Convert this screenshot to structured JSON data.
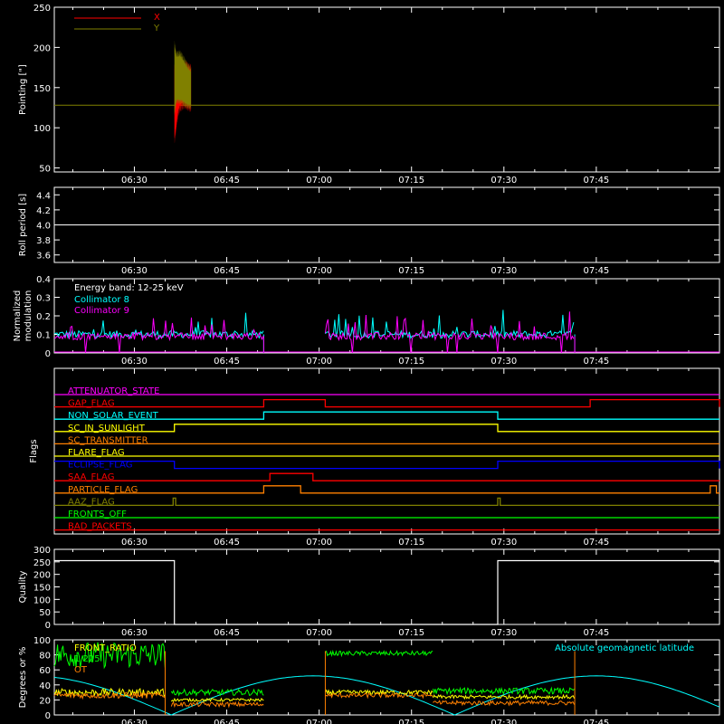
{
  "x_axis": {
    "tick_labels": [
      "06:30",
      "06:45",
      "07:00",
      "07:15",
      "07:30",
      "07:45"
    ],
    "tick_minutes": [
      30,
      45,
      60,
      75,
      90,
      105
    ],
    "range_minutes": [
      17,
      125
    ]
  },
  "chart_data": [
    {
      "type": "area",
      "ylabel": "Pointing [\"]",
      "ylim": [
        45,
        250
      ],
      "yticks": [
        50,
        100,
        150,
        200,
        250
      ],
      "legend_placement": "top-left",
      "series": [
        {
          "name": "X",
          "color": "#ff0000",
          "start": 36.5,
          "end": 39.2,
          "upper": [
            175,
            182,
            175,
            180,
            178,
            178,
            180,
            178,
            176,
            176
          ],
          "lower": [
            83,
            100,
            118,
            124,
            126,
            128,
            128,
            126,
            125,
            124
          ]
        },
        {
          "name": "Y",
          "color": "#808000",
          "start": 36.5,
          "end": 39.2,
          "upper": [
            205,
            192,
            192,
            193,
            190,
            186,
            182,
            178,
            175,
            173
          ],
          "lower": [
            117,
            132,
            133,
            132,
            132,
            130,
            128,
            127,
            126,
            126
          ]
        }
      ],
      "baseline": 128,
      "baseline_color": "#808000"
    },
    {
      "type": "line",
      "ylabel": "Roll period [s]",
      "ylim": [
        3.5,
        4.5
      ],
      "yticks": [
        3.6,
        3.8,
        4.0,
        4.2,
        4.4
      ],
      "ytick_labels": [
        "3.6",
        "3.8",
        "4.0",
        "4.2",
        "4.4"
      ],
      "value": 4.0,
      "color": "#ffffff"
    },
    {
      "type": "line",
      "ylabel": [
        "Normalized",
        "modulation"
      ],
      "ylim": [
        0,
        0.4
      ],
      "yticks": [
        0,
        0.1,
        0.2,
        0.3,
        0.4
      ],
      "ytick_labels": [
        "0",
        "0.1",
        "0.2",
        "0.3",
        "0.4"
      ],
      "annotation": "Energy band: 12-25 keV",
      "series": [
        {
          "name": "Collimator 8",
          "color": "#00ffff",
          "segments": [
            [
              17,
              51
            ],
            [
              61,
              101.5
            ]
          ],
          "level": 0.1
        },
        {
          "name": "Collimator 9",
          "color": "#ff00ff",
          "segments": [
            [
              17,
              51
            ],
            [
              61,
              101.5
            ]
          ],
          "level": 0.09
        }
      ]
    },
    {
      "type": "table",
      "ylabel": "Flags",
      "flags": [
        {
          "name": "ATTENUATOR_STATE",
          "color": "#ff00ff",
          "level": 0,
          "high": []
        },
        {
          "name": "GAP_FLAG",
          "color": "#ff0000",
          "level": 0,
          "high": [
            [
              51,
              61
            ],
            [
              104,
              125
            ]
          ]
        },
        {
          "name": "NON_SOLAR_EVENT",
          "color": "#00ffff",
          "level": 0,
          "high": [
            [
              51,
              89
            ]
          ]
        },
        {
          "name": "SC_IN_SUNLIGHT",
          "color": "#ffff00",
          "level": 0,
          "high": [
            [
              36.5,
              89
            ]
          ]
        },
        {
          "name": "SC_TRANSMITTER",
          "color": "#ff8000",
          "level": 0,
          "high": []
        },
        {
          "name": "FLARE_FLAG",
          "color": "#ffff00",
          "level": 0,
          "high": []
        },
        {
          "name": "ECLIPSE_FLAG",
          "color": "#0000ff",
          "level": 1,
          "high": [
            [
              17,
              36.5
            ],
            [
              89,
              125
            ]
          ]
        },
        {
          "name": "SAA_FLAG",
          "color": "#ff0000",
          "level": 0,
          "high": [
            [
              52,
              59
            ]
          ]
        },
        {
          "name": "PARTICLE_FLAG",
          "color": "#ff8000",
          "level": 0,
          "high": [
            [
              51,
              57
            ],
            [
              123.5,
              124.5
            ]
          ]
        },
        {
          "name": "AAZ_FLAG",
          "color": "#808000",
          "level": 0,
          "high": [
            [
              36.3,
              36.7
            ],
            [
              89,
              89.4
            ]
          ]
        },
        {
          "name": "FRONTS_OFF",
          "color": "#00ff00",
          "level": 0,
          "high": []
        },
        {
          "name": "BAD_PACKETS",
          "color": "#ff0000",
          "level": 0,
          "high": []
        }
      ]
    },
    {
      "type": "line",
      "ylabel": "Quality",
      "ylim": [
        0,
        300
      ],
      "yticks": [
        0,
        50,
        100,
        150,
        200,
        250,
        300
      ],
      "color": "#ffffff",
      "steps": [
        [
          17,
          255
        ],
        [
          36.5,
          0
        ],
        [
          89,
          255
        ],
        [
          125,
          255
        ]
      ]
    },
    {
      "type": "line",
      "ylabel": "Degrees or %",
      "ylim": [
        0,
        100
      ],
      "yticks": [
        0,
        20,
        40,
        60,
        80,
        100
      ],
      "annotation_right": "Absolute geomagnetic latitude",
      "series": [
        {
          "name": "FRONT_RATIO",
          "color": "#ffff00"
        },
        {
          "name": "",
          "color": "#00ff00"
        },
        {
          "name": "",
          "color": "#ff8000"
        }
      ],
      "legend_partial": [
        "1.225",
        "OT"
      ],
      "latitude_color": "#00ffff"
    }
  ]
}
